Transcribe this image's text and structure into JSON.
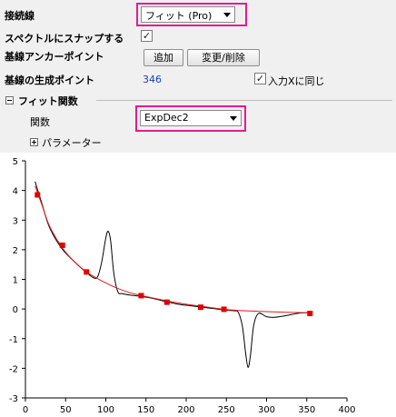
{
  "settings": {
    "baseline_label": "接続線",
    "baseline_value": "フィット (Pro)",
    "snap_label": "スペクトルにスナップする",
    "snap_checked": "✓",
    "anchor_label": "基線アンカーポイント",
    "add_button": "追加",
    "modify_button": "変更/削除",
    "gen_points_label": "基線の生成ポイント",
    "gen_points_value": "346",
    "same_as_input_label": "入力Xに同じ",
    "same_as_input_checked": "✓",
    "fit_section_label": "フィット関数",
    "function_label": "関数",
    "function_value": "ExpDec2",
    "parameters_label": "パラメーター"
  },
  "chart_data": {
    "type": "line",
    "xlim": [
      0,
      400
    ],
    "ylim": [
      -3,
      5
    ],
    "x_ticks": [
      "0",
      "50",
      "100",
      "150",
      "200",
      "250",
      "300",
      "350",
      "400"
    ],
    "y_ticks": [
      "-3",
      "-2",
      "-1",
      "0",
      "1",
      "2",
      "3",
      "4",
      "5"
    ],
    "series": [
      {
        "color": "#000000",
        "x": [
          12,
          20,
          30,
          45,
          60,
          75,
          85,
          90,
          95,
          100,
          103,
          106,
          110,
          115,
          120,
          130,
          145,
          160,
          175,
          190,
          205,
          220,
          235,
          250,
          260,
          265,
          270,
          274,
          277,
          280,
          284,
          290,
          300,
          310,
          325,
          340,
          354
        ],
        "y": [
          4.3,
          3.6,
          2.75,
          2.05,
          1.62,
          1.25,
          1.05,
          1.1,
          1.6,
          2.4,
          2.62,
          2.3,
          1.2,
          0.58,
          0.52,
          0.47,
          0.42,
          0.35,
          0.25,
          0.16,
          0.11,
          0.06,
          0.01,
          -0.04,
          -0.06,
          -0.12,
          -0.6,
          -1.5,
          -1.97,
          -1.55,
          -0.55,
          -0.15,
          -0.26,
          -0.28,
          -0.22,
          -0.14,
          -0.12
        ]
      },
      {
        "color": "#e11b1b",
        "x": [
          12,
          20,
          30,
          45,
          60,
          75,
          90,
          110,
          130,
          150,
          175,
          200,
          225,
          250,
          275,
          300,
          325,
          354
        ],
        "y": [
          4.15,
          3.55,
          2.8,
          2.1,
          1.62,
          1.27,
          1.02,
          0.75,
          0.55,
          0.42,
          0.28,
          0.16,
          0.07,
          -0.02,
          -0.06,
          -0.09,
          -0.11,
          -0.13
        ]
      }
    ],
    "anchor_points": {
      "color": "#e00000",
      "x": [
        15,
        46,
        76,
        144,
        176,
        218,
        247,
        354
      ],
      "y": [
        3.85,
        2.15,
        1.25,
        0.45,
        0.23,
        0.06,
        -0.01,
        -0.15
      ]
    }
  }
}
